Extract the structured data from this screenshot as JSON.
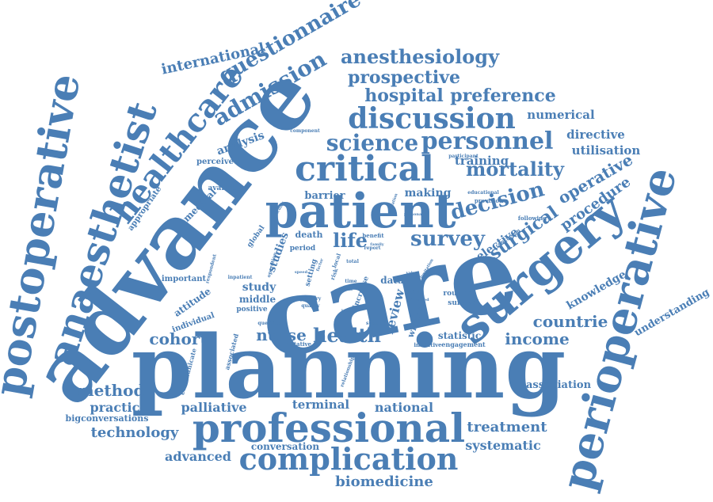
{
  "cloud": {
    "color": "#4a7eb5",
    "words": [
      "care",
      "advance",
      "planning",
      "surgery",
      "patient",
      "professional",
      "perioperative",
      "postoperative",
      "anaesthetist",
      "healthcare",
      "critical",
      "complication",
      "discussion",
      "personnel",
      "science",
      "anesthesiology",
      "prospective",
      "hospital",
      "preference",
      "admission",
      "questionnaire",
      "international",
      "mortality",
      "decision",
      "survey",
      "life",
      "health",
      "nurse",
      "cohort",
      "countrie",
      "income",
      "method",
      "practice",
      "technology",
      "palliative",
      "terminal",
      "national",
      "treatment",
      "systematic",
      "biomedicine",
      "advanced",
      "conversation",
      "bigconversations",
      "operative",
      "procedure",
      "elective",
      "surgical",
      "knowledge",
      "understanding",
      "association",
      "numerical",
      "directive",
      "utilisation",
      "training",
      "making",
      "barrier",
      "analysis",
      "perceived",
      "medical",
      "appropriate",
      "available",
      "global",
      "studies",
      "study",
      "middle",
      "positive",
      "attitude",
      "individual",
      "important",
      "death",
      "period",
      "setting",
      "data",
      "review",
      "wishes",
      "statistic",
      "engagement",
      "initiative",
      "routine",
      "survival",
      "communicate",
      "associated",
      "qualitative",
      "relationship",
      "component",
      "participant",
      "educational",
      "provision",
      "following",
      "conclusion",
      "benefit",
      "report",
      "inpatient",
      "operation",
      "respondent",
      "article",
      "time",
      "result",
      "total",
      "increase",
      "latency",
      "support",
      "question",
      "primary",
      "quality",
      "limitation",
      "personal",
      "education",
      "family",
      "local",
      "risk",
      "particular",
      "factor",
      "involved",
      "speed",
      "value"
    ]
  }
}
